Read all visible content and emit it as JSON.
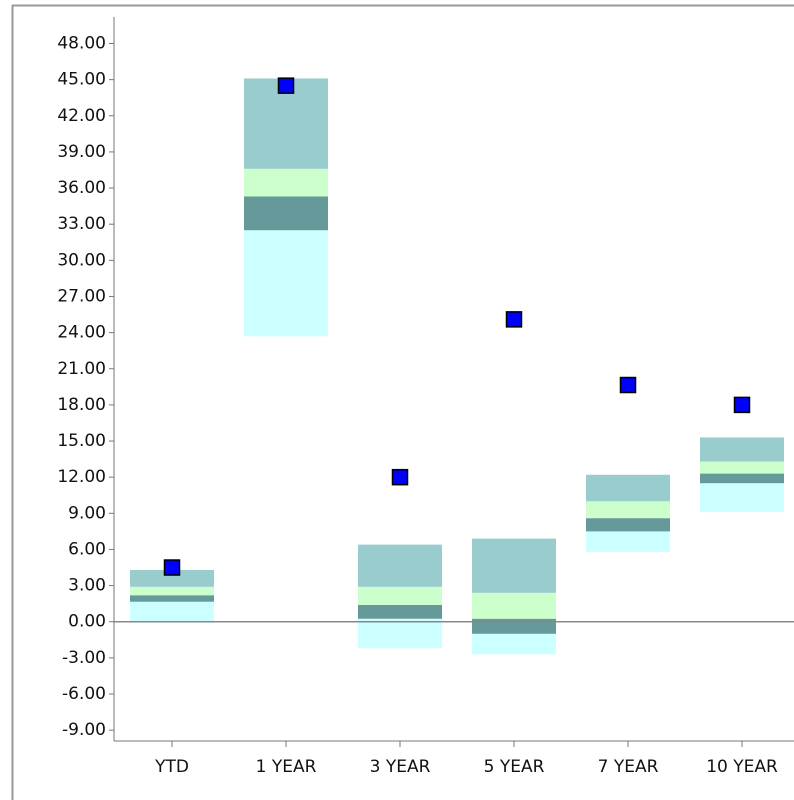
{
  "chart_data": {
    "type": "floating-bands",
    "categories": [
      "YTD",
      "1 YEAR",
      "3 YEAR",
      "5 YEAR",
      "7 YEAR",
      "10 YEAR"
    ],
    "boundaries": [
      [
        0,
        1.66,
        2.2,
        2.9,
        4.3
      ],
      [
        23.7,
        32.5,
        35.3,
        37.6,
        45.1
      ],
      [
        -2.2,
        0.25,
        1.4,
        2.9,
        6.4
      ],
      [
        -2.7,
        -1.0,
        0.25,
        2.4,
        6.9
      ],
      [
        5.8,
        7.5,
        8.6,
        10.0,
        12.2
      ],
      [
        9.1,
        11.5,
        12.3,
        13.3,
        15.3
      ]
    ],
    "band_colors": [
      "#ccffff",
      "#669999",
      "#ccffcc",
      "#99cccc"
    ],
    "values": [
      4.5,
      44.5,
      12.0,
      25.1,
      19.65,
      18.0
    ],
    "marker_color": "#0000ff",
    "ylim": [
      -9.9,
      50.2
    ],
    "yticks": [
      {
        "value": 48,
        "label": "48.00"
      },
      {
        "value": 45,
        "label": "45.00"
      },
      {
        "value": 42,
        "label": "42.00"
      },
      {
        "value": 39,
        "label": "39.00"
      },
      {
        "value": 36,
        "label": "36.00"
      },
      {
        "value": 33,
        "label": "33.00"
      },
      {
        "value": 30,
        "label": "30.00"
      },
      {
        "value": 27,
        "label": "27.00"
      },
      {
        "value": 24,
        "label": "24.00"
      },
      {
        "value": 21,
        "label": "21.00"
      },
      {
        "value": 18,
        "label": "18.00"
      },
      {
        "value": 15,
        "label": "15.00"
      },
      {
        "value": 12,
        "label": "12.00"
      },
      {
        "value": 9,
        "label": "9.00"
      },
      {
        "value": 6,
        "label": "6.00"
      },
      {
        "value": 3,
        "label": "3.00"
      },
      {
        "value": 0,
        "label": "0.00"
      },
      {
        "value": -3,
        "label": "-3.00"
      },
      {
        "value": -6,
        "label": "-6.00"
      },
      {
        "value": -9,
        "label": "-9.00"
      }
    ]
  }
}
